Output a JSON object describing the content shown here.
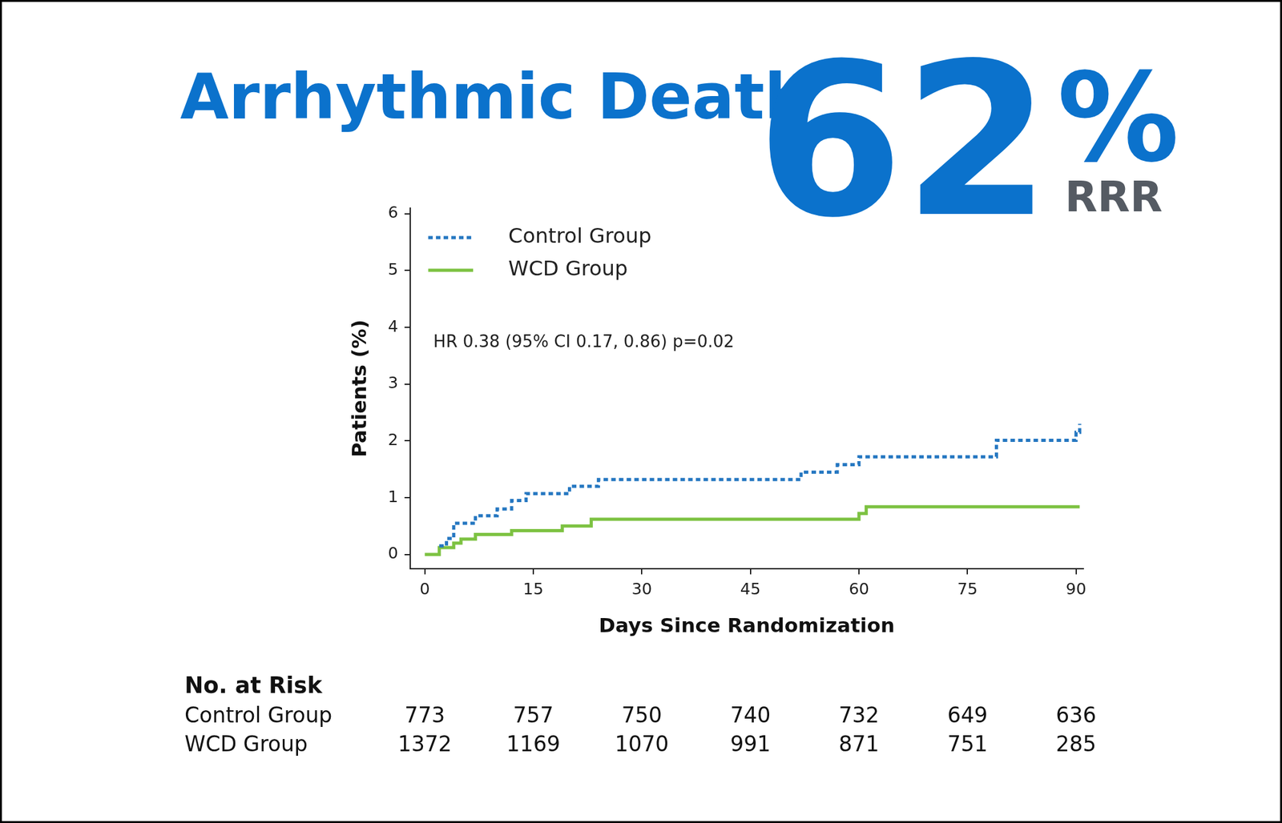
{
  "chart_data": {
    "type": "step",
    "title": "Arrhythmic Death",
    "headline": {
      "number": "62",
      "unit": "%",
      "label": "RRR"
    },
    "annotation": "HR 0.38 (95% CI 0.17, 0.86) p=0.02",
    "x_label": "Days Since Randomization",
    "y_label": "Patients (%)",
    "xlim": [
      -2,
      91
    ],
    "xticks": [
      0,
      15,
      30,
      45,
      60,
      75,
      90
    ],
    "ylim": [
      -0.25,
      6.1
    ],
    "yticks": [
      0,
      1,
      2,
      3,
      4,
      5,
      6
    ],
    "grid": false,
    "legend": "upper left",
    "series": [
      {
        "name": "Control Group",
        "color": "#2577c1",
        "line_style": "dashed",
        "x": [
          2,
          3,
          4,
          7,
          10,
          12,
          14,
          20,
          24,
          52,
          57,
          60,
          79,
          90,
          90.5
        ],
        "values": [
          0.15,
          0.28,
          0.55,
          0.68,
          0.8,
          0.95,
          1.07,
          1.2,
          1.32,
          1.45,
          1.58,
          1.72,
          2.01,
          2.15,
          2.3
        ]
      },
      {
        "name": "WCD Group",
        "color": "#7dc242",
        "line_style": "solid",
        "x": [
          0,
          2,
          4,
          5,
          7,
          12,
          19,
          23,
          60,
          61,
          90.5
        ],
        "values": [
          0,
          0.12,
          0.2,
          0.27,
          0.35,
          0.42,
          0.5,
          0.62,
          0.72,
          0.84,
          0.84
        ]
      }
    ],
    "risk_table": {
      "title": "No. at Risk",
      "x": [
        0,
        15,
        30,
        45,
        60,
        75,
        90
      ],
      "rows": [
        {
          "name": "Control Group",
          "values": [
            773,
            757,
            750,
            740,
            732,
            649,
            636
          ]
        },
        {
          "name": "WCD Group",
          "values": [
            1372,
            1169,
            1070,
            991,
            871,
            751,
            285
          ]
        }
      ]
    }
  }
}
